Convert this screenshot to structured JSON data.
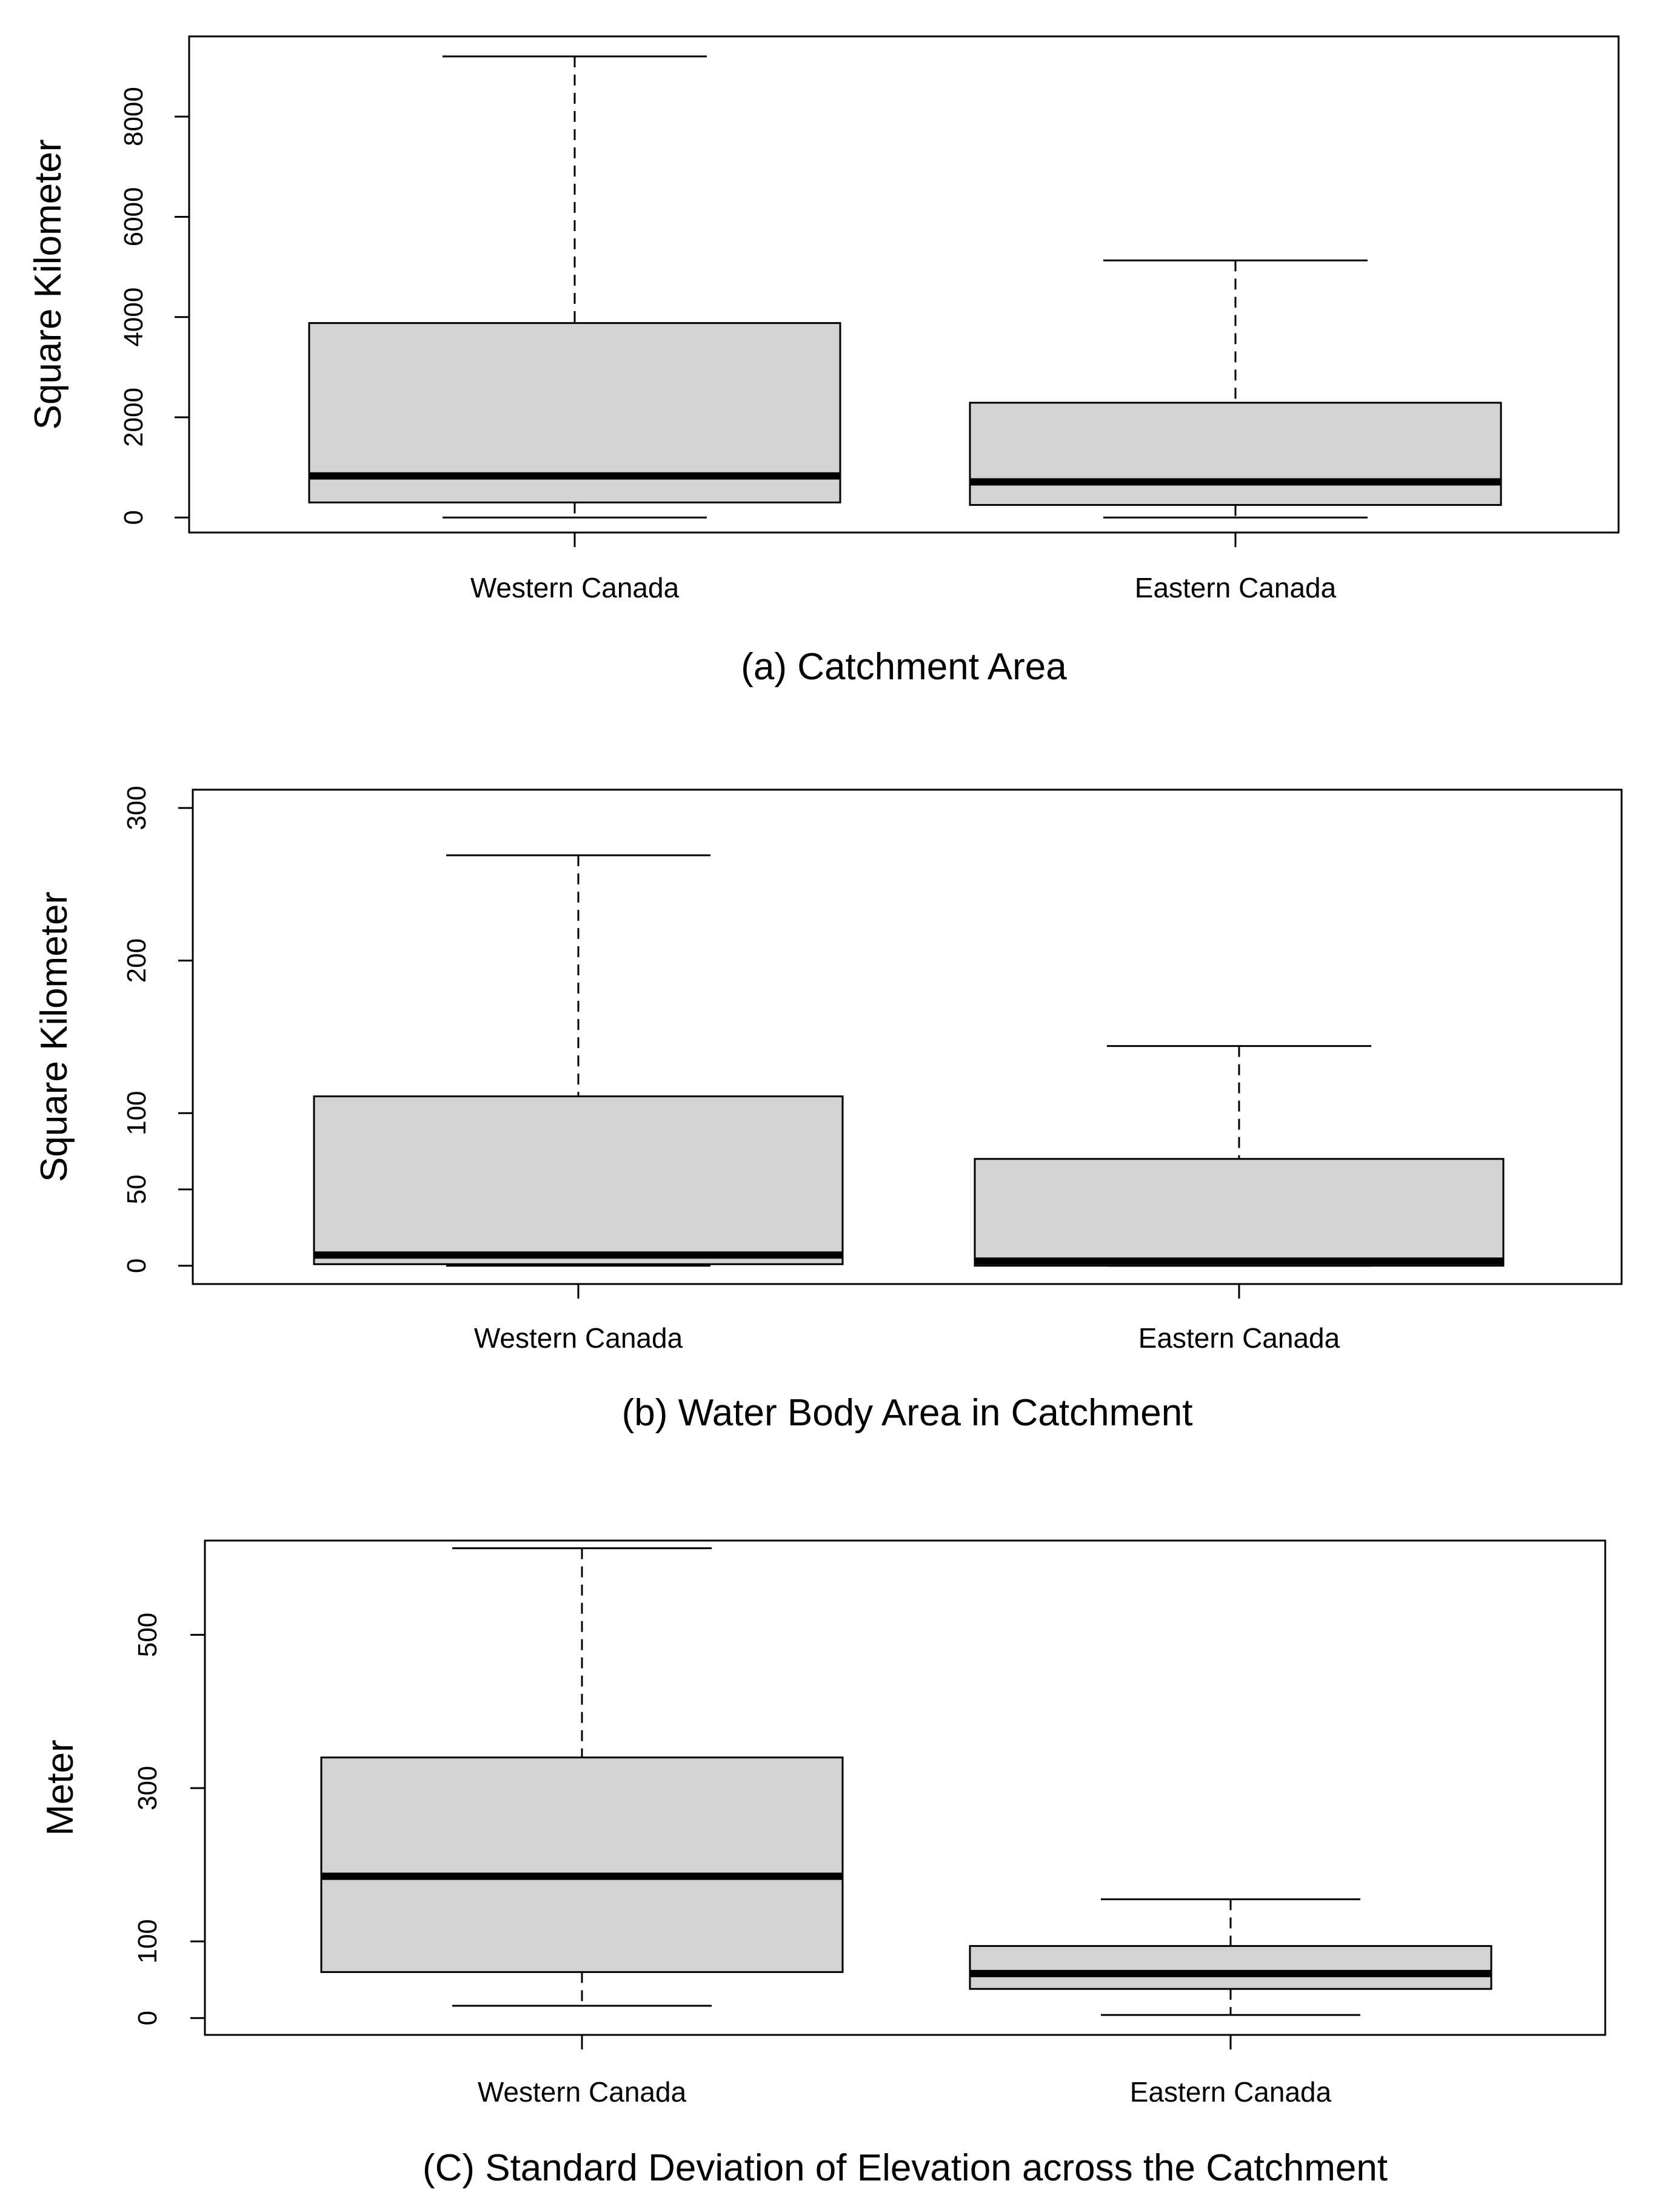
{
  "chart_data": [
    {
      "type": "boxplot",
      "caption": "(a) Catchment Area",
      "ylabel": "Square Kilometer",
      "ylim": [
        -300,
        9600
      ],
      "yticks": [
        0,
        2000,
        4000,
        6000,
        8000
      ],
      "categories": [
        "Western Canada",
        "Eastern Canada"
      ],
      "colors": {
        "box_fill": "#d3d3d3",
        "stroke": "#000000"
      },
      "boxes": [
        {
          "name": "Western Canada",
          "whisker_low": 0,
          "q1": 300,
          "median": 830,
          "q3": 3880,
          "whisker_high": 9200
        },
        {
          "name": "Eastern Canada",
          "whisker_low": 0,
          "q1": 250,
          "median": 710,
          "q3": 2290,
          "whisker_high": 5130
        }
      ]
    },
    {
      "type": "boxplot",
      "caption": "(b) Water Body Area in Catchment",
      "ylabel": "Square Kilometer",
      "ylim": [
        -12,
        312
      ],
      "yticks": [
        0,
        50,
        100,
        200,
        300
      ],
      "categories": [
        "Western Canada",
        "Eastern Canada"
      ],
      "colors": {
        "box_fill": "#d3d3d3",
        "stroke": "#000000"
      },
      "boxes": [
        {
          "name": "Western Canada",
          "whisker_low": 0,
          "q1": 1,
          "median": 7,
          "q3": 111,
          "whisker_high": 269
        },
        {
          "name": "Eastern Canada",
          "whisker_low": 0,
          "q1": 0,
          "median": 3,
          "q3": 70,
          "whisker_high": 144
        }
      ]
    },
    {
      "type": "boxplot",
      "caption": "(C) Standard Deviation of Elevation across the Catchment",
      "ylabel": "Meter",
      "ylim": [
        -22,
        623
      ],
      "yticks": [
        0,
        100,
        300,
        500
      ],
      "categories": [
        "Western Canada",
        "Eastern Canada"
      ],
      "colors": {
        "box_fill": "#d3d3d3",
        "stroke": "#000000"
      },
      "boxes": [
        {
          "name": "Western Canada",
          "whisker_low": 16,
          "q1": 60,
          "median": 185,
          "q3": 340,
          "whisker_high": 613
        },
        {
          "name": "Eastern Canada",
          "whisker_low": 4,
          "q1": 38,
          "median": 58,
          "q3": 94,
          "whisker_high": 155
        }
      ]
    }
  ]
}
